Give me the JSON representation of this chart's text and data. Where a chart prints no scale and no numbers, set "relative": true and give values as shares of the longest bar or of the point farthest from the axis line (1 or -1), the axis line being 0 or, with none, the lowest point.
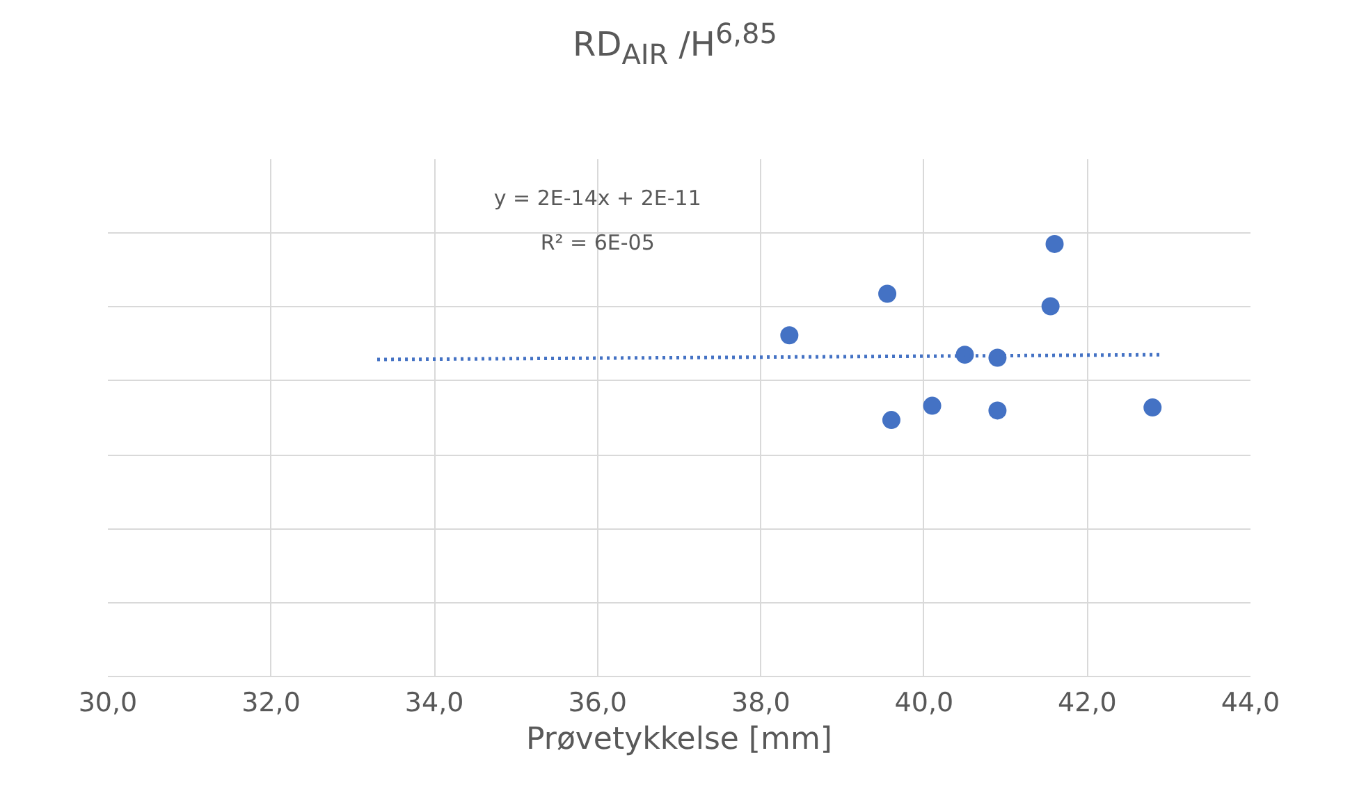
{
  "chart_data": {
    "type": "scatter",
    "title": "RD$_{AIR}$ /H$^{6,85}$",
    "xlabel": "Prøvetykkelse [mm]",
    "relative": true,
    "xlim": [
      30,
      44
    ],
    "xticks": [
      {
        "value": 30,
        "label": "30,0"
      },
      {
        "value": 32,
        "label": "32,0"
      },
      {
        "value": 34,
        "label": "34,0"
      },
      {
        "value": 36,
        "label": "36,0"
      },
      {
        "value": 38,
        "label": "38,0"
      },
      {
        "value": 40,
        "label": "40,0"
      },
      {
        "value": 42,
        "label": "42,0"
      },
      {
        "value": 44,
        "label": "44,0"
      }
    ],
    "grid": true,
    "marker": "circle",
    "annotations": [
      "y = 2E-14x + 2E-11",
      "R² = 6E-05"
    ],
    "series": [
      {
        "color": "#4472c4",
        "x": [
          38.35,
          39.55,
          39.6,
          40.1,
          40.5,
          40.9,
          40.9,
          41.55,
          41.6,
          42.8
        ],
        "values": [
          0.789,
          0.885,
          0.593,
          0.626,
          0.744,
          0.737,
          0.615,
          0.856,
          1,
          0.622
        ]
      },
      {
        "type": "line",
        "color": "#4472c4",
        "line_style": "dotted",
        "marker": "none",
        "x": [
          33.3,
          42.9
        ],
        "values": [
          0.733,
          0.744
        ]
      }
    ]
  }
}
